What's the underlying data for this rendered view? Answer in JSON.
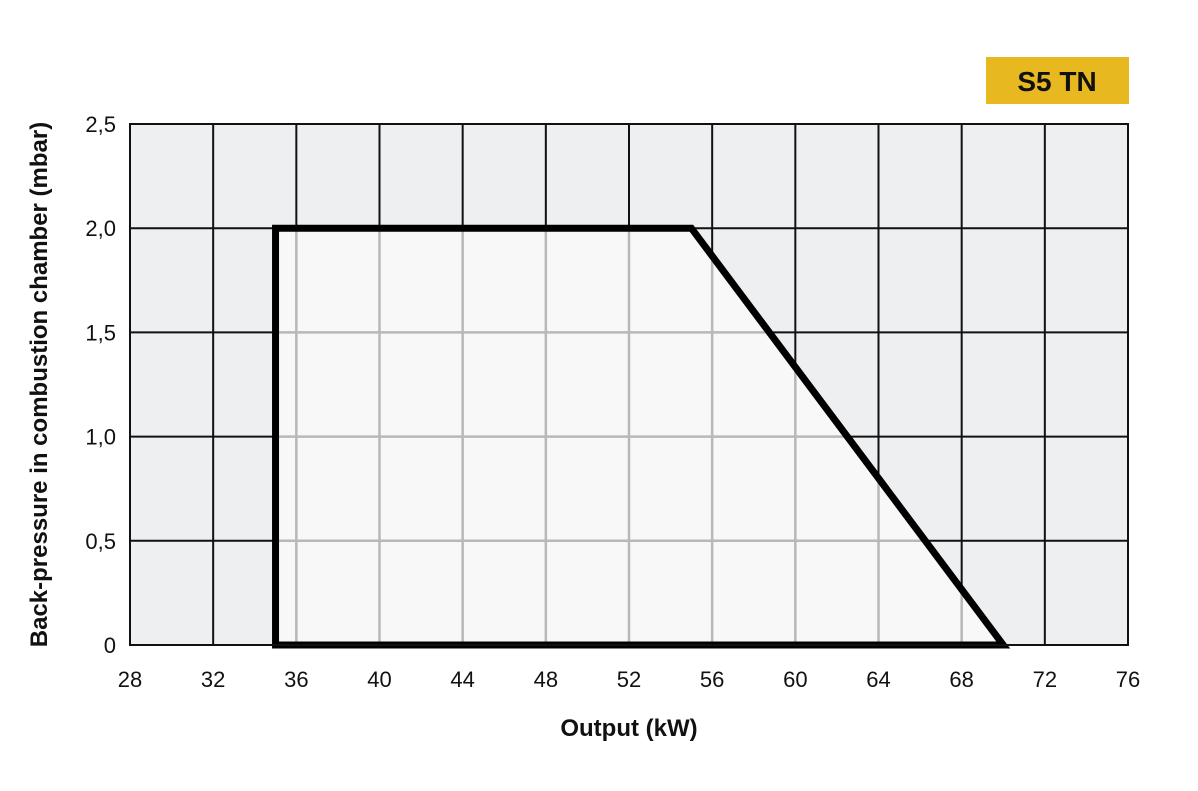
{
  "chart_data": {
    "type": "area",
    "badge": "S5 TN",
    "xlabel": "Output (kW)",
    "ylabel": "Back-pressure in combustion chamber (mbar)",
    "xlim": [
      28,
      76
    ],
    "ylim": [
      0,
      2.5
    ],
    "x_ticks": [
      "28",
      "32",
      "36",
      "40",
      "44",
      "48",
      "52",
      "56",
      "60",
      "64",
      "68",
      "72",
      "76"
    ],
    "y_ticks": [
      "0",
      "0,5",
      "1,0",
      "1,5",
      "2,0",
      "2,5"
    ],
    "grid": true,
    "working_field": {
      "x": [
        35,
        35,
        55,
        70
      ],
      "y": [
        0,
        2.0,
        2.0,
        0
      ]
    },
    "colors": {
      "badge": "#e8b820",
      "plot_background": "#eeeff1",
      "field_fill": "#f8f8f8",
      "grid_inner": "#b8b8b8",
      "grid_outer": "#111111",
      "outline": "#000000"
    }
  }
}
